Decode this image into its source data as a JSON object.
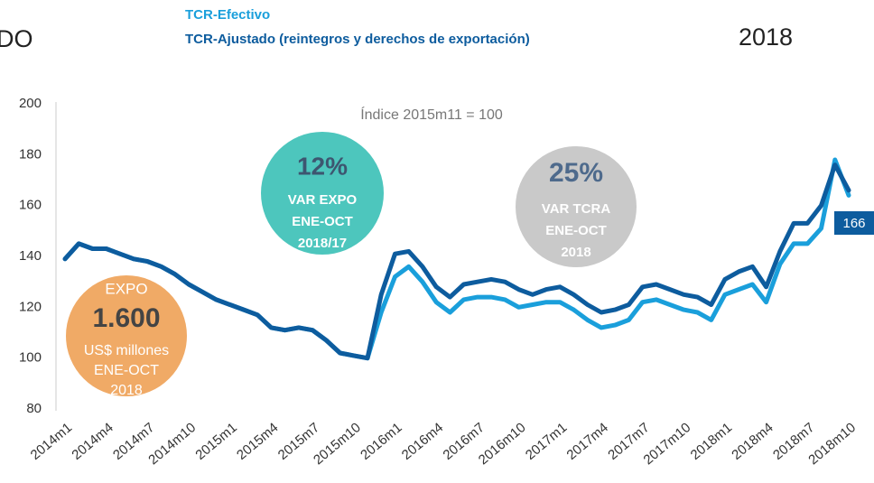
{
  "chart_data": {
    "type": "line",
    "header_left": "DO",
    "header_right": "2018",
    "subtitle": "Índice 2015m11 = 100",
    "categories": [
      "2014m1",
      null,
      null,
      "2014m4",
      null,
      null,
      "2014m7",
      null,
      null,
      "2014m10",
      null,
      null,
      "2015m1",
      null,
      null,
      "2015m4",
      null,
      null,
      "2015m7",
      null,
      null,
      "2015m10",
      null,
      null,
      "2016m1",
      null,
      null,
      "2016m4",
      null,
      null,
      "2016m7",
      null,
      null,
      "2016m10",
      null,
      null,
      "2017m1",
      null,
      null,
      "2017m4",
      null,
      null,
      "2017m7",
      null,
      null,
      "2017m10",
      null,
      null,
      "2018m1",
      null,
      null,
      "2018m4",
      null,
      null,
      "2018m7",
      null,
      null,
      "2018m10"
    ],
    "series": [
      {
        "name": "TCR-Ajustado (reintegros y derechos de exportación)",
        "color": "#0d5c9e",
        "values": [
          139,
          145,
          143,
          143,
          141,
          139,
          138,
          136,
          133,
          129,
          126,
          123,
          121,
          119,
          117,
          112,
          111,
          112,
          111,
          107,
          102,
          101,
          100,
          125,
          141,
          142,
          136,
          128,
          124,
          129,
          130,
          131,
          130,
          127,
          125,
          127,
          128,
          125,
          121,
          118,
          119,
          121,
          128,
          129,
          127,
          125,
          124,
          121,
          131,
          134,
          136,
          128,
          142,
          153,
          153,
          160,
          176,
          166
        ]
      },
      {
        "name": "TCR-Efectivo",
        "color": "#1a9fdb",
        "values": [
          139,
          145,
          143,
          143,
          141,
          139,
          138,
          136,
          133,
          129,
          126,
          123,
          121,
          119,
          117,
          112,
          111,
          112,
          111,
          107,
          102,
          101,
          100,
          118,
          132,
          136,
          130,
          122,
          118,
          123,
          124,
          124,
          123,
          120,
          121,
          122,
          122,
          119,
          115,
          112,
          113,
          115,
          122,
          123,
          121,
          119,
          118,
          115,
          125,
          127,
          129,
          122,
          137,
          145,
          145,
          151,
          178,
          164
        ]
      }
    ],
    "ylim": [
      80,
      200
    ],
    "yticks": [
      80,
      100,
      120,
      140,
      160,
      180,
      200
    ],
    "grid": false,
    "annotations": [
      {
        "color": "#f0aa66",
        "lines": [
          "EXPO",
          "1.600",
          "US$ millones",
          "ENE-OCT",
          "2018"
        ]
      },
      {
        "color": "#4dc6bd",
        "lines": [
          "12%",
          "VAR EXPO",
          "ENE-OCT",
          "2018/17"
        ]
      },
      {
        "color": "#c9c9c9",
        "lines": [
          "25%",
          "VAR TCRA",
          "ENE-OCT",
          "2018"
        ]
      }
    ]
  }
}
